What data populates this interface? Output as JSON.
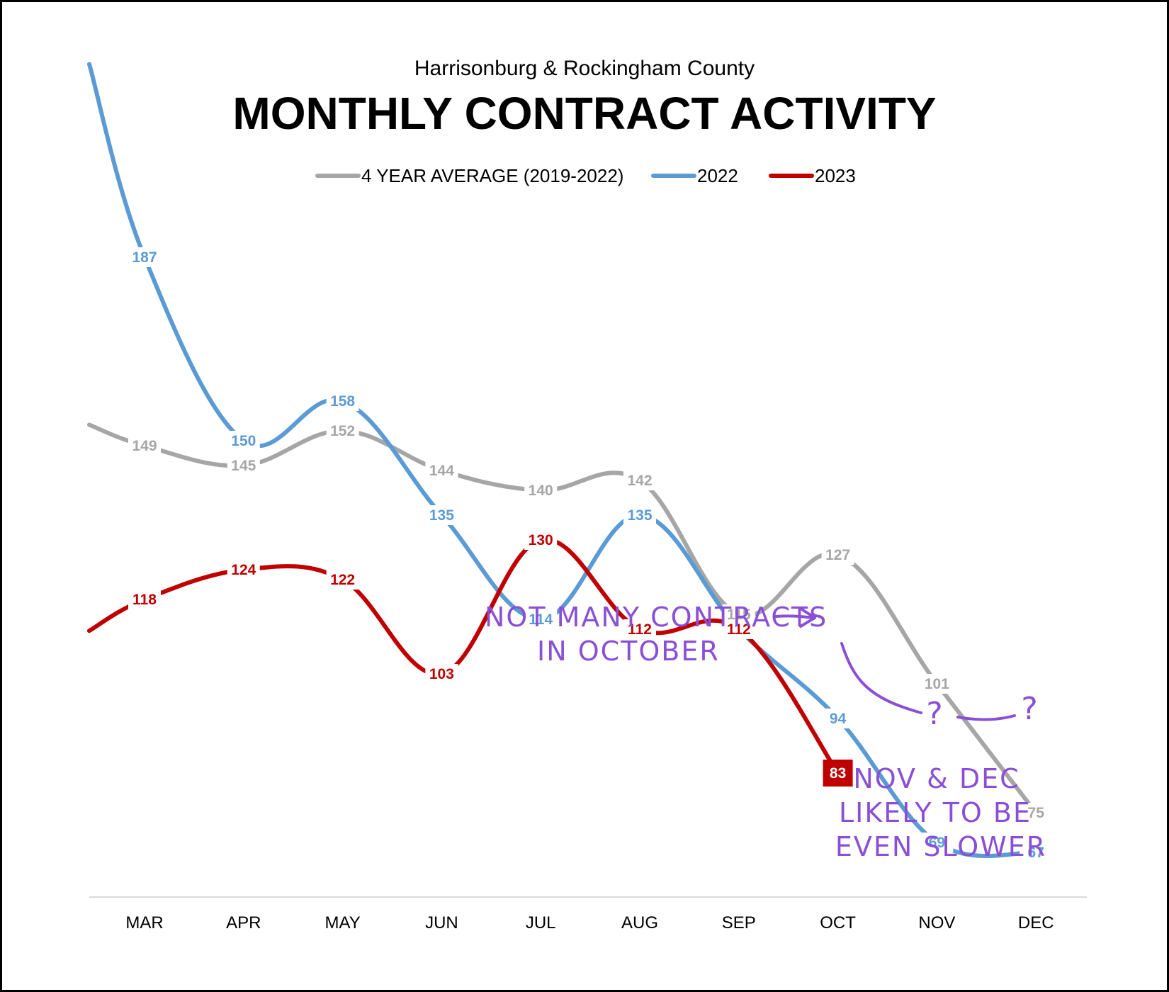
{
  "chart_data": {
    "type": "line",
    "subtitle": "Harrisonburg & Rockingham County",
    "title": "MONTHLY CONTRACT ACTIVITY",
    "categories": [
      "MAR",
      "APR",
      "MAY",
      "JUN",
      "JUL",
      "AUG",
      "SEP",
      "OCT",
      "NOV",
      "DEC"
    ],
    "legend_position": "top",
    "grid": false,
    "series": [
      {
        "name": "4 YEAR AVERAGE (2019-2022)",
        "color": "#a6a6a6",
        "values": [
          149,
          145,
          152,
          144,
          140,
          142,
          115,
          127,
          101,
          75
        ]
      },
      {
        "name": "2022",
        "color": "#5b9bd5",
        "values": [
          187,
          150,
          158,
          135,
          114,
          135,
          112,
          94,
          69,
          67
        ]
      },
      {
        "name": "2023",
        "color": "#c00000",
        "values": [
          118,
          124,
          122,
          103,
          130,
          112,
          112,
          83,
          null,
          null
        ]
      }
    ],
    "highlight": {
      "series": "2023",
      "category": "OCT",
      "value": 83
    },
    "annotations": [
      {
        "text_line1": "NOT MANY CONTRACTS",
        "text_line2": "IN OCTOBER"
      },
      {
        "text_line1": "NOV & DEC",
        "text_line2": "LIKELY TO BE",
        "text_line3": "EVEN SLOWER"
      }
    ],
    "question_marks": [
      "?",
      "?"
    ]
  }
}
